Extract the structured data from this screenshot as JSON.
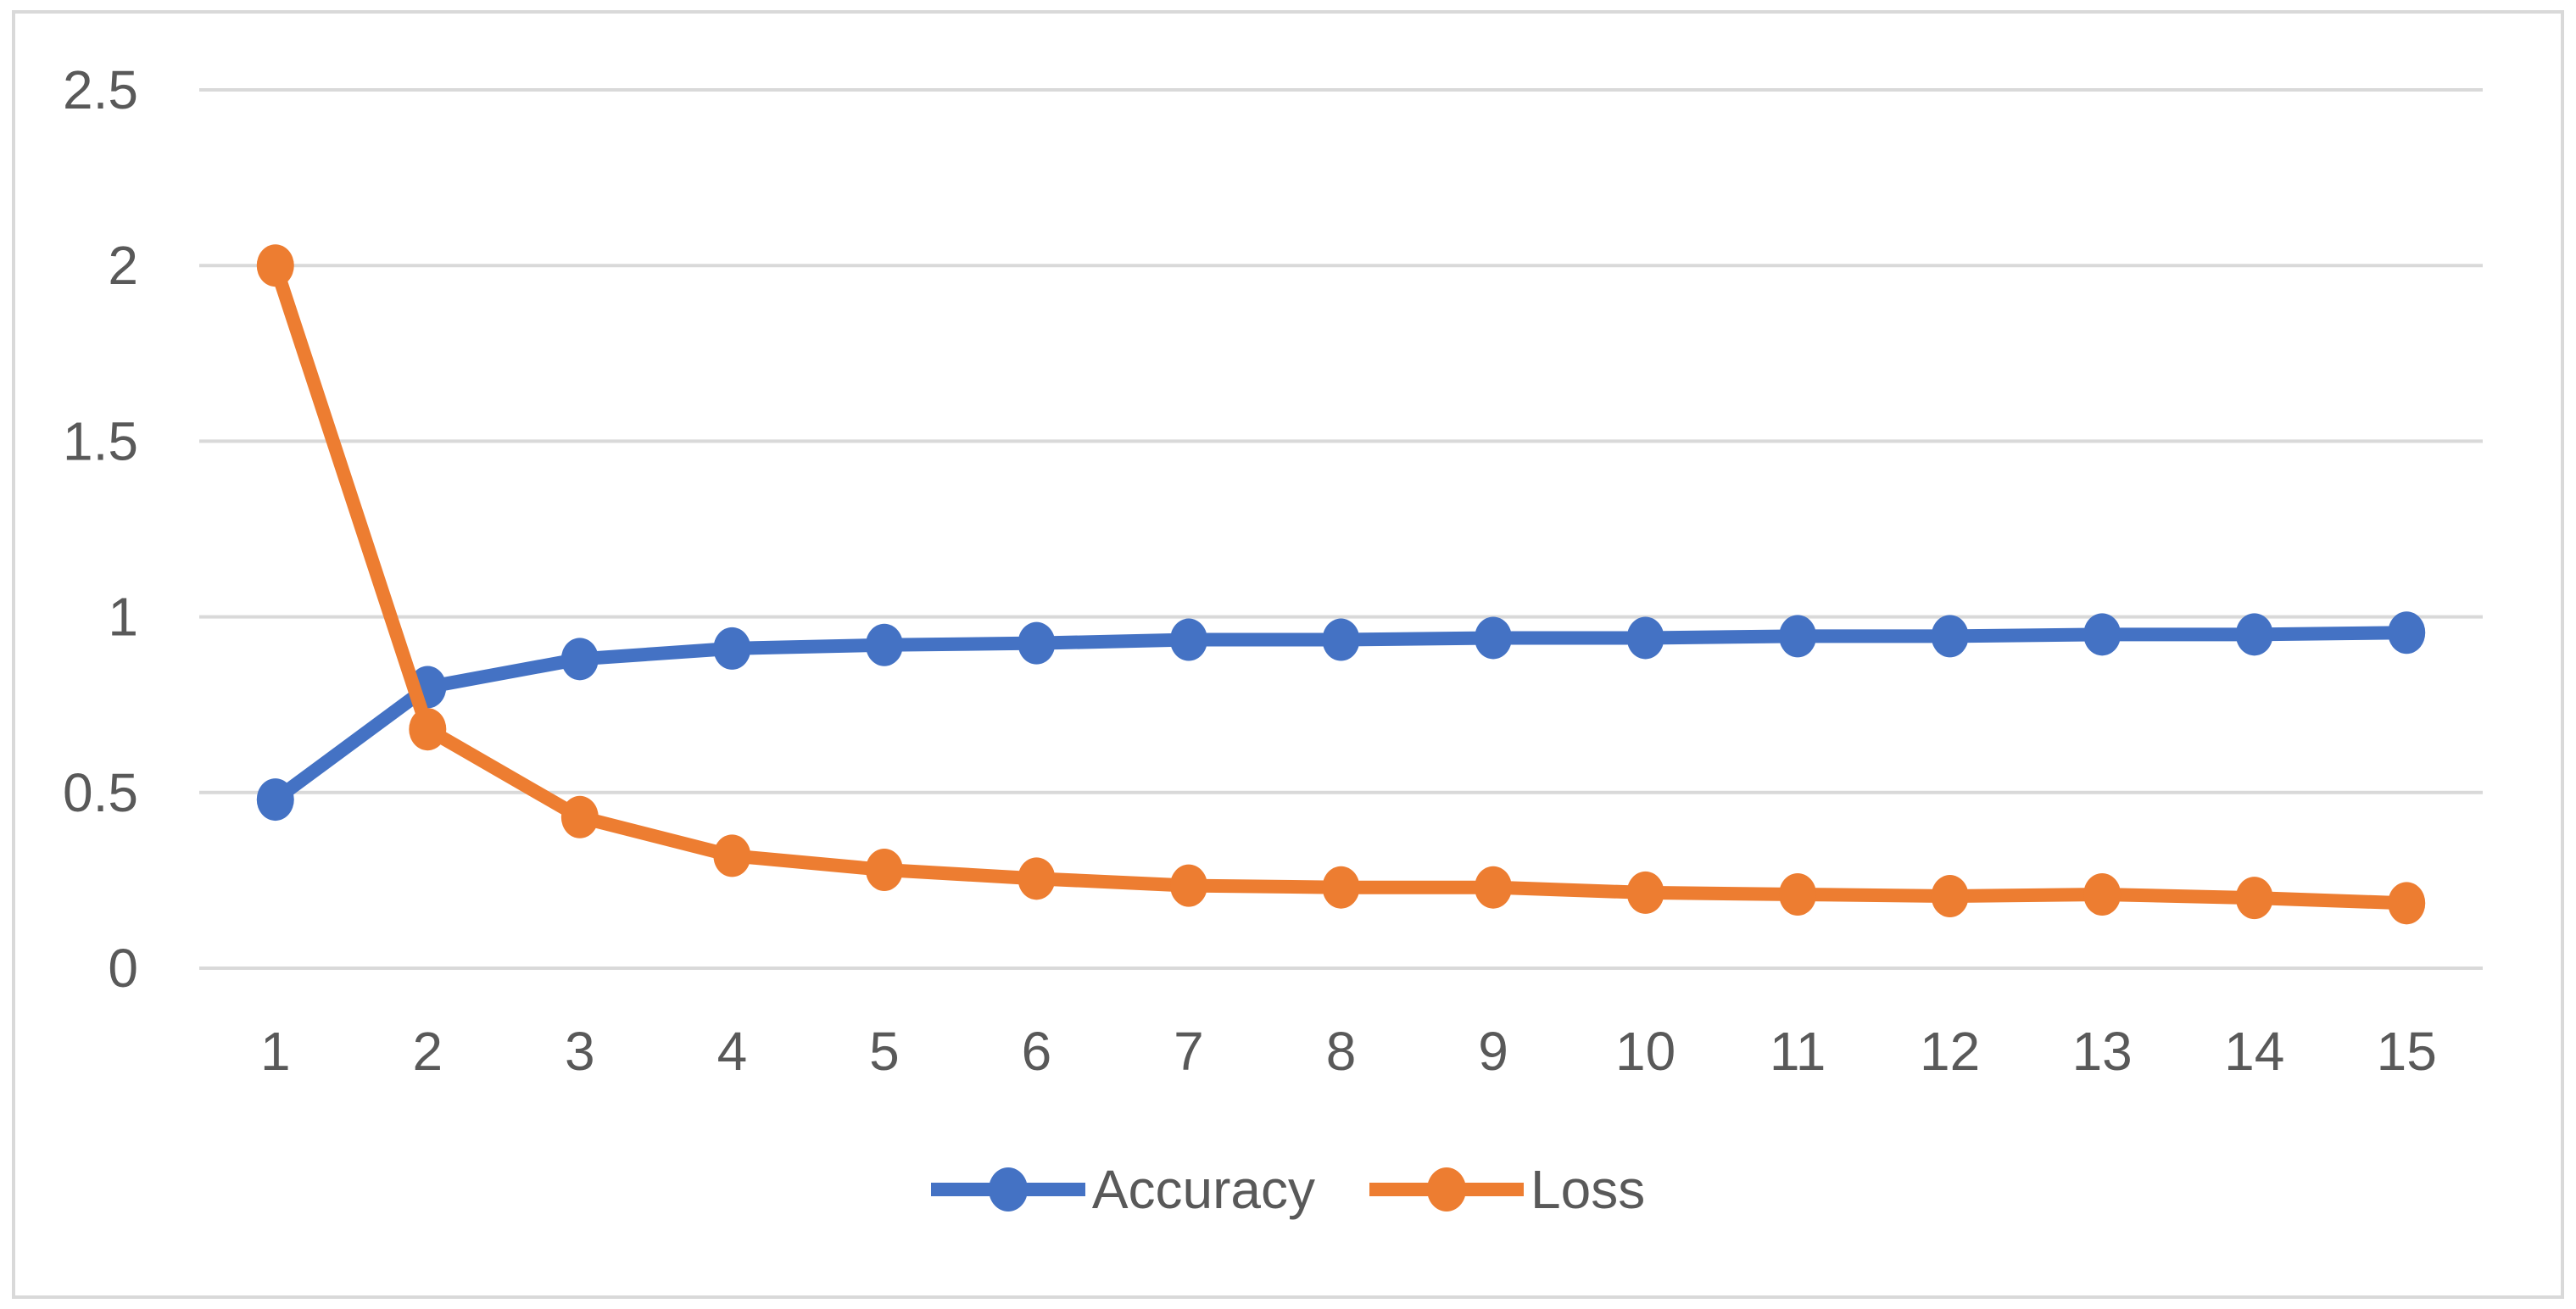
{
  "chart_data": {
    "type": "line",
    "title": "",
    "xlabel": "",
    "ylabel": "",
    "x": [
      1,
      2,
      3,
      4,
      5,
      6,
      7,
      8,
      9,
      10,
      11,
      12,
      13,
      14,
      15
    ],
    "x_tick_labels": [
      "1",
      "2",
      "3",
      "4",
      "5",
      "6",
      "7",
      "8",
      "9",
      "10",
      "11",
      "12",
      "13",
      "14",
      "15"
    ],
    "y_tick_labels": [
      "0",
      "0.5",
      "1",
      "1.5",
      "2",
      "2.5"
    ],
    "ylim": [
      0,
      2.5
    ],
    "y_gridline_step": 0.5,
    "grid": "horizontal-only",
    "legend_position": "bottom-center",
    "marker": "circle",
    "series": [
      {
        "name": "Accuracy",
        "color": "#4472C4",
        "values": [
          0.48,
          0.8,
          0.88,
          0.91,
          0.92,
          0.925,
          0.935,
          0.935,
          0.94,
          0.94,
          0.945,
          0.945,
          0.95,
          0.95,
          0.955
        ]
      },
      {
        "name": "Loss",
        "color": "#ED7D31",
        "values": [
          2.0,
          0.68,
          0.43,
          0.32,
          0.28,
          0.255,
          0.235,
          0.23,
          0.23,
          0.215,
          0.21,
          0.205,
          0.21,
          0.2,
          0.185
        ]
      }
    ]
  },
  "colors": {
    "background": "#FFFFFF",
    "gridline": "#D9D9D9",
    "chart_border": "#D9D9D9",
    "tick_label": "#595959",
    "legend_text": "#595959"
  }
}
